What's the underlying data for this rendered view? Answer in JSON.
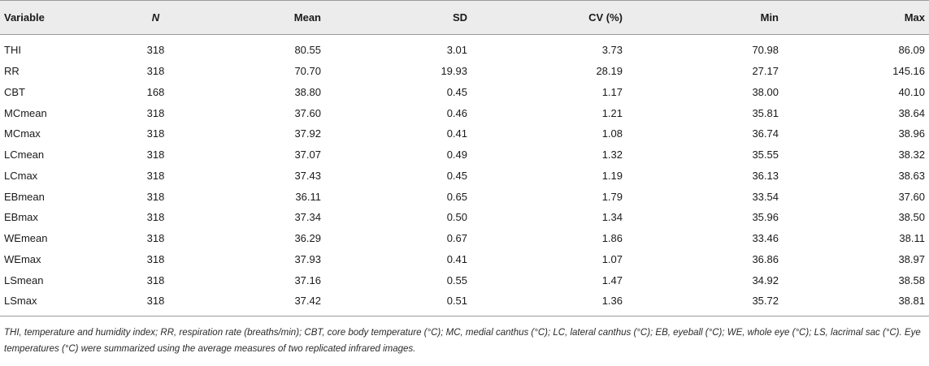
{
  "table": {
    "headers": [
      "Variable",
      "N",
      "Mean",
      "SD",
      "CV (%)",
      "Min",
      "Max"
    ],
    "rows": [
      [
        "THI",
        "318",
        "80.55",
        "3.01",
        "3.73",
        "70.98",
        "86.09"
      ],
      [
        "RR",
        "318",
        "70.70",
        "19.93",
        "28.19",
        "27.17",
        "145.16"
      ],
      [
        "CBT",
        "168",
        "38.80",
        "0.45",
        "1.17",
        "38.00",
        "40.10"
      ],
      [
        "MCmean",
        "318",
        "37.60",
        "0.46",
        "1.21",
        "35.81",
        "38.64"
      ],
      [
        "MCmax",
        "318",
        "37.92",
        "0.41",
        "1.08",
        "36.74",
        "38.96"
      ],
      [
        "LCmean",
        "318",
        "37.07",
        "0.49",
        "1.32",
        "35.55",
        "38.32"
      ],
      [
        "LCmax",
        "318",
        "37.43",
        "0.45",
        "1.19",
        "36.13",
        "38.63"
      ],
      [
        "EBmean",
        "318",
        "36.11",
        "0.65",
        "1.79",
        "33.54",
        "37.60"
      ],
      [
        "EBmax",
        "318",
        "37.34",
        "0.50",
        "1.34",
        "35.96",
        "38.50"
      ],
      [
        "WEmean",
        "318",
        "36.29",
        "0.67",
        "1.86",
        "33.46",
        "38.11"
      ],
      [
        "WEmax",
        "318",
        "37.93",
        "0.41",
        "1.07",
        "36.86",
        "38.97"
      ],
      [
        "LSmean",
        "318",
        "37.16",
        "0.55",
        "1.47",
        "34.92",
        "38.58"
      ],
      [
        "LSmax",
        "318",
        "37.42",
        "0.51",
        "1.36",
        "35.72",
        "38.81"
      ]
    ]
  },
  "footnote": "THI, temperature and humidity index; RR, respiration rate (breaths/min); CBT, core body temperature (°C); MC, medial canthus (°C); LC, lateral canthus (°C); EB, eyeball (°C); WE, whole eye (°C); LS, lacrimal sac (°C). Eye temperatures (°C) were summarized using the average measures of two replicated infrared images."
}
